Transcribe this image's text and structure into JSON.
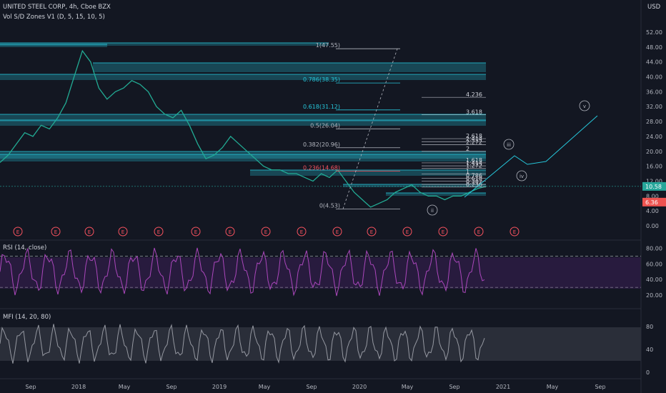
{
  "header": {
    "symbol_line": "UNITED STEEL CORP, 4h, Cboe BZX",
    "indicator_line": "Vol S/D Zones V1 (D, 5, 15, 10, 5)",
    "currency": "USD"
  },
  "rsi": {
    "title": "RSI (14, close)",
    "ticks": [
      "80.00",
      "60.00",
      "40.00",
      "20.00"
    ],
    "upper": 70,
    "lower": 30
  },
  "mfi": {
    "title": "MFI (14, 20, 80)",
    "ticks": [
      "80",
      "40",
      "0"
    ],
    "upper": 80,
    "lower": 20
  },
  "chart_data": {
    "type": "line",
    "price_axis_ticks": [
      "52.00",
      "48.00",
      "44.00",
      "40.00",
      "36.00",
      "32.00",
      "28.00",
      "24.00",
      "20.00",
      "16.00",
      "12.00",
      "8.00",
      "4.00",
      "0.00"
    ],
    "time_axis_labels": [
      "Sep",
      "2018",
      "May",
      "Sep",
      "2019",
      "May",
      "Sep",
      "2020",
      "May",
      "Sep",
      "2021",
      "May",
      "Sep"
    ],
    "current_price": "10.58",
    "low_price_marker": "6.36",
    "series": [
      {
        "values": [
          17,
          19,
          22,
          25,
          24,
          27,
          26,
          29,
          33,
          40,
          47,
          44,
          37,
          34,
          36,
          37,
          39,
          38,
          36,
          32,
          30,
          29,
          31,
          27,
          22,
          18,
          19,
          21,
          24,
          22,
          20,
          18,
          16,
          15,
          15,
          14,
          14,
          13,
          12,
          14,
          13,
          15,
          12,
          9,
          7,
          5,
          6,
          7,
          9,
          10,
          11,
          9,
          8,
          8,
          7,
          8,
          8,
          9,
          10,
          10.58
        ]
      }
    ],
    "fibonacci_retracement": [
      {
        "label": "1(47.55)",
        "value": 47.55
      },
      {
        "label": "0.786(38.35)",
        "value": 38.35
      },
      {
        "label": "0.618(31.12)",
        "value": 31.12
      },
      {
        "label": "0.5(26.04)",
        "value": 26.04
      },
      {
        "label": "0.382(20.96)",
        "value": 20.96
      },
      {
        "label": "0.236(14.68)",
        "value": 14.68
      },
      {
        "label": "0(4.53)",
        "value": 4.53
      }
    ],
    "fib_extensions": [
      {
        "label": "4.236",
        "value": 34.5
      },
      {
        "label": "3.618",
        "value": 29.8
      },
      {
        "label": "2.618",
        "value": 23.4
      },
      {
        "label": "2.414",
        "value": 22.6
      },
      {
        "label": "2.272",
        "value": 21.8
      },
      {
        "label": "2",
        "value": 20.0
      },
      {
        "label": "1.618",
        "value": 16.9
      },
      {
        "label": "1.414",
        "value": 16.1
      },
      {
        "label": "1.272",
        "value": 15.4
      },
      {
        "label": "1",
        "value": 13.9
      },
      {
        "label": "0.786",
        "value": 12.8
      },
      {
        "label": "0.618",
        "value": 12.0
      },
      {
        "label": "0.382",
        "value": 11.1
      },
      {
        "label": "0.236",
        "value": 10.4
      }
    ],
    "elliott_wave_labels": [
      "ii",
      "iii",
      "iv",
      "v"
    ],
    "earnings_marker": "E"
  }
}
